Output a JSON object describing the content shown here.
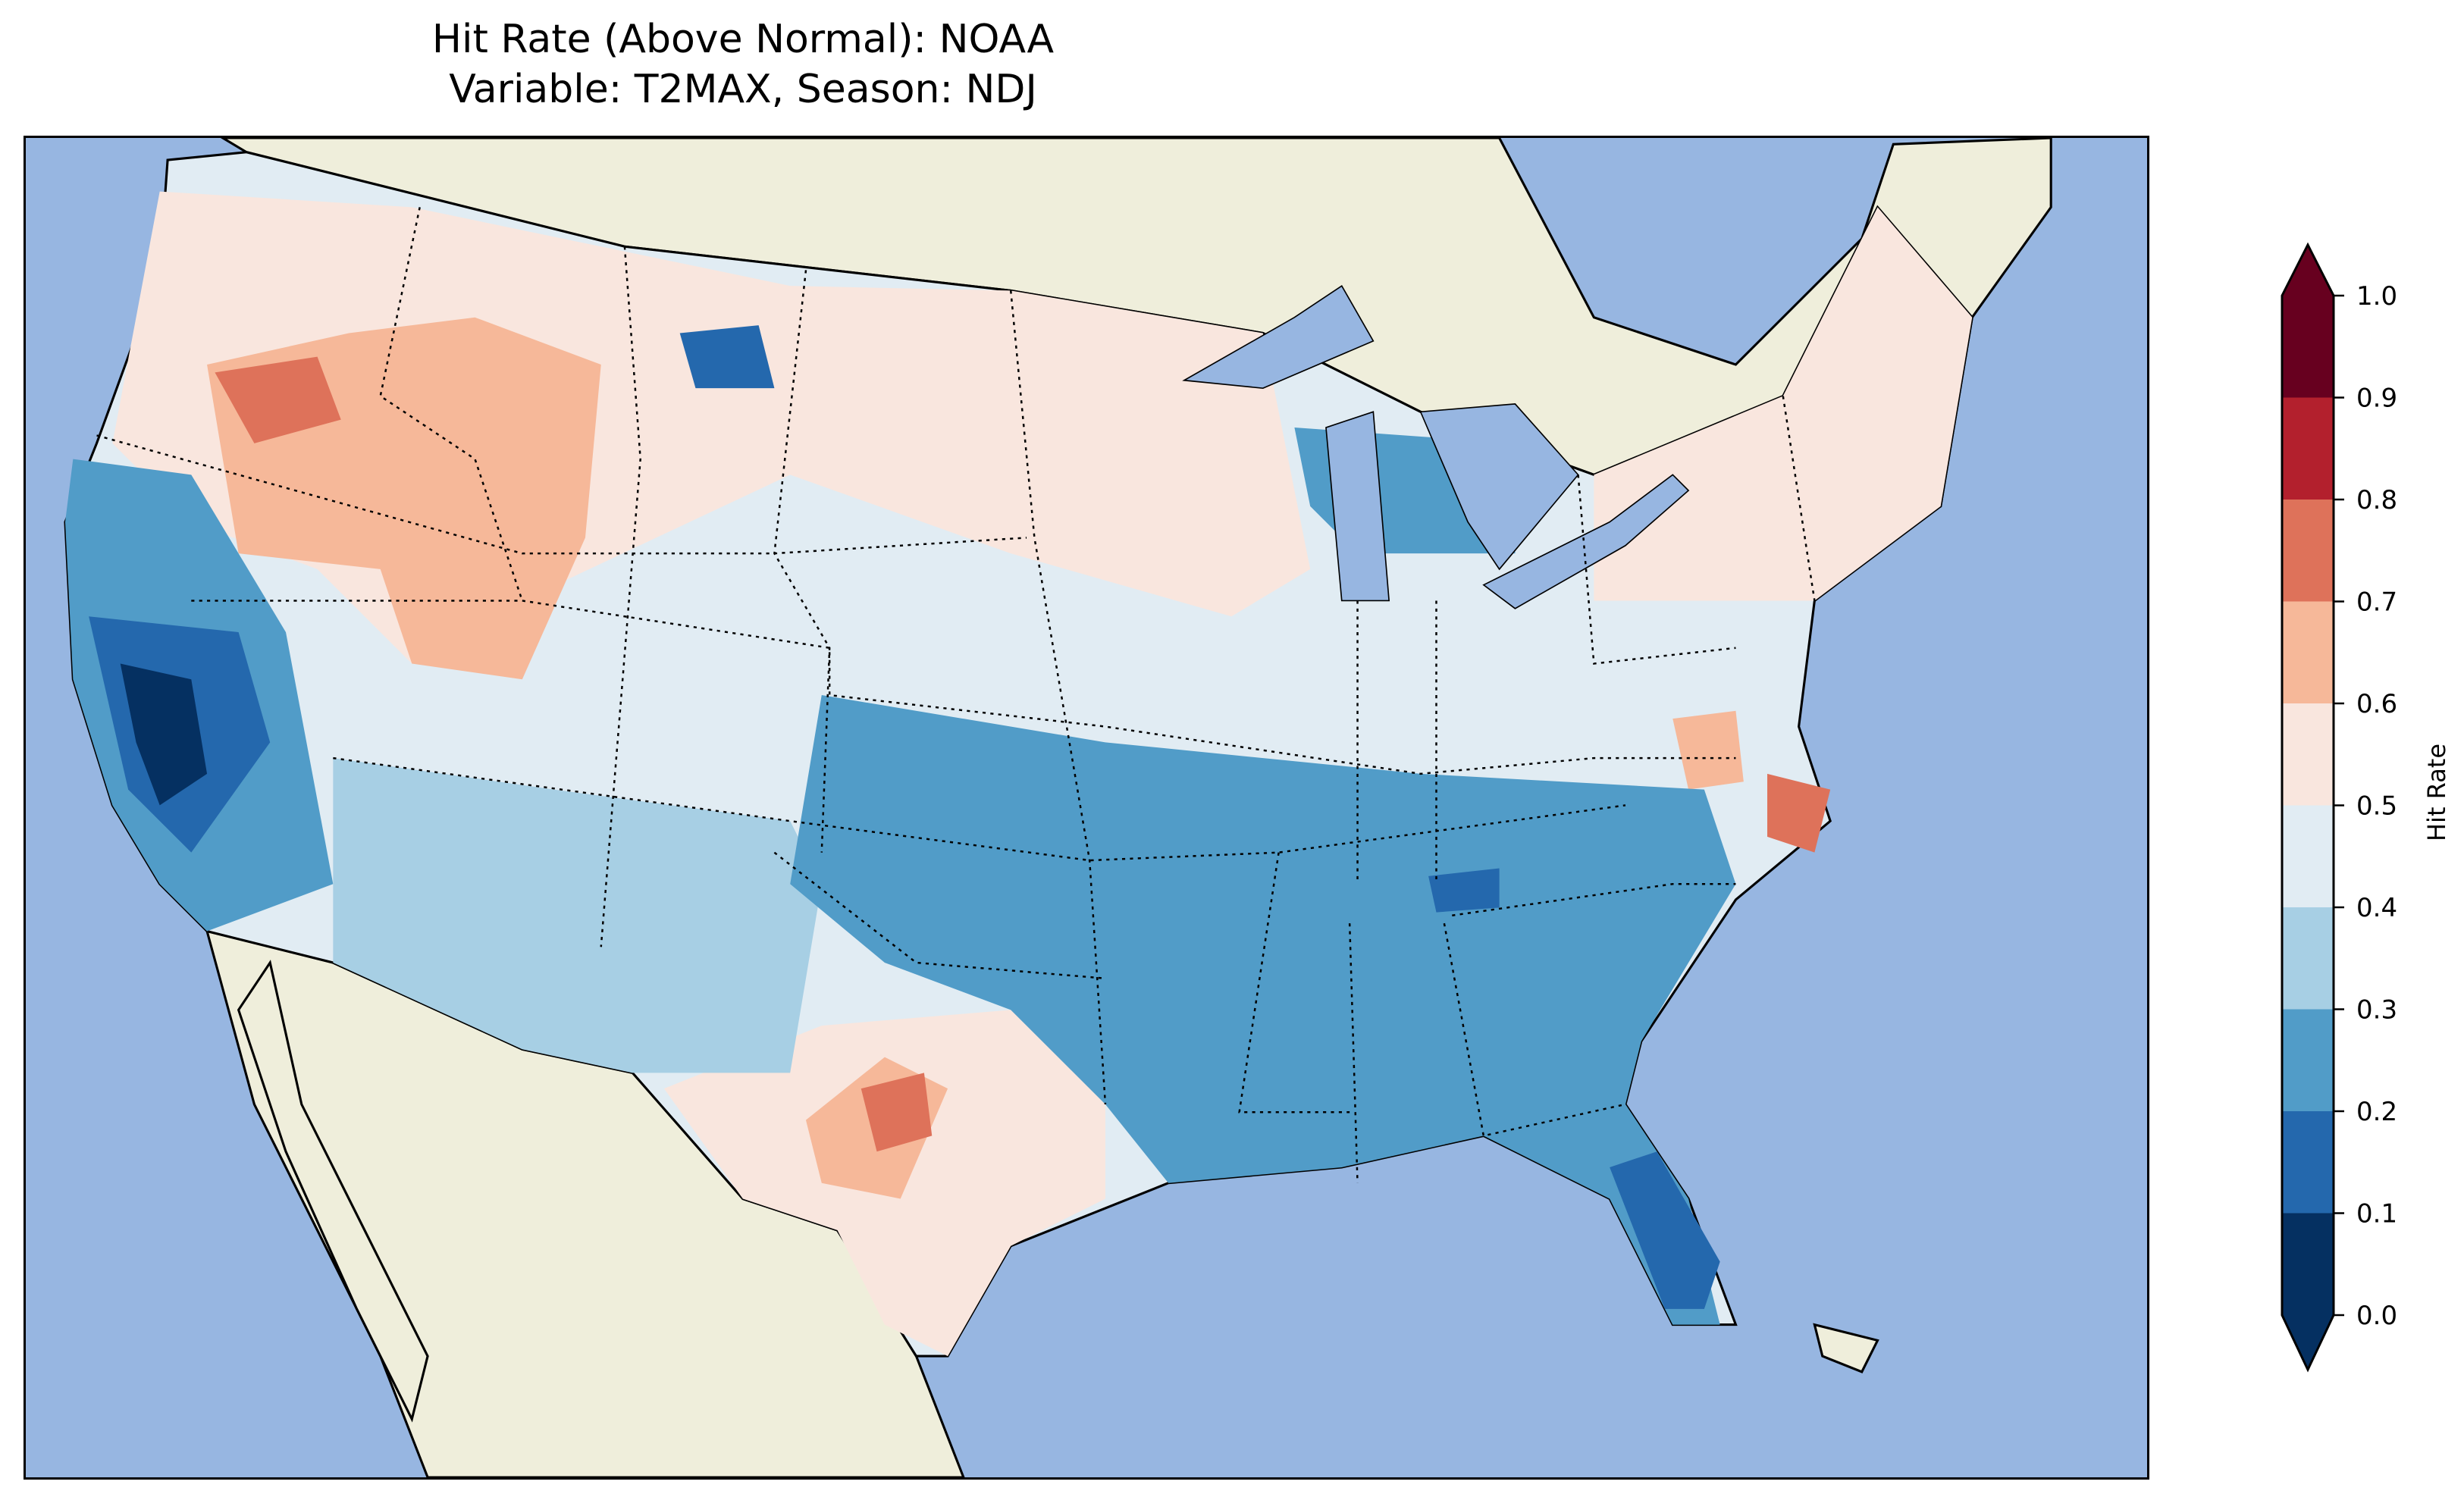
{
  "title": {
    "line1": "Hit Rate (Above Normal): NOAA",
    "line2": "Variable: T2MAX, Season: NDJ"
  },
  "colors": {
    "land": "#efeedb",
    "ocean": "#97b6e1"
  },
  "colorbar": {
    "label": "Hit Rate",
    "ticks": [
      "0.0",
      "0.1",
      "0.2",
      "0.3",
      "0.4",
      "0.5",
      "0.6",
      "0.7",
      "0.8",
      "0.9",
      "1.0"
    ],
    "bins": [
      {
        "min": 0.0,
        "max": 0.1,
        "color": "#053061"
      },
      {
        "min": 0.1,
        "max": 0.2,
        "color": "#2468ad"
      },
      {
        "min": 0.2,
        "max": 0.3,
        "color": "#519cc8"
      },
      {
        "min": 0.3,
        "max": 0.4,
        "color": "#a7cfe4"
      },
      {
        "min": 0.4,
        "max": 0.5,
        "color": "#e1ecf3"
      },
      {
        "min": 0.5,
        "max": 0.6,
        "color": "#f9e6de"
      },
      {
        "min": 0.6,
        "max": 0.7,
        "color": "#f6b899"
      },
      {
        "min": 0.7,
        "max": 0.8,
        "color": "#de725a"
      },
      {
        "min": 0.8,
        "max": 0.9,
        "color": "#b3202d"
      },
      {
        "min": 0.9,
        "max": 1.0,
        "color": "#67001f"
      }
    ]
  }
}
